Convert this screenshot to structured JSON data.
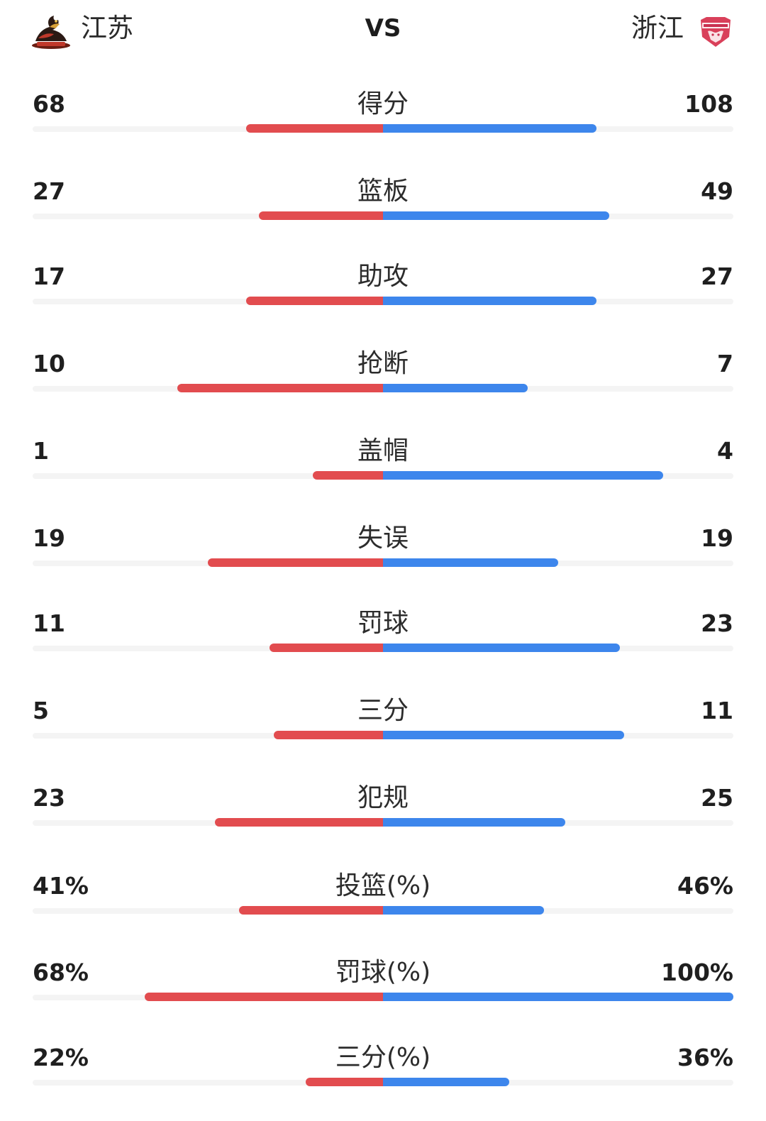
{
  "header": {
    "home_team": "江苏",
    "vs": "VS",
    "away_team": "浙江",
    "home_logo": "dragon-team-logo",
    "away_logo": "golden-bulls-team-logo"
  },
  "colors": {
    "home_bar": "#e24c4f",
    "away_bar": "#3d86ec",
    "track": "#f4f4f4"
  },
  "stats": [
    {
      "label": "得分",
      "left": "68",
      "right": "108",
      "left_fraction": 0.39,
      "right_fraction": 0.61
    },
    {
      "label": "篮板",
      "left": "27",
      "right": "49",
      "left_fraction": 0.355,
      "right_fraction": 0.645
    },
    {
      "label": "助攻",
      "left": "17",
      "right": "27",
      "left_fraction": 0.39,
      "right_fraction": 0.61
    },
    {
      "label": "抢断",
      "left": "10",
      "right": "7",
      "left_fraction": 0.587,
      "right_fraction": 0.413
    },
    {
      "label": "盖帽",
      "left": "1",
      "right": "4",
      "left_fraction": 0.2,
      "right_fraction": 0.8
    },
    {
      "label": "失误",
      "left": "19",
      "right": "19",
      "left_fraction": 0.5,
      "right_fraction": 0.5
    },
    {
      "label": "罚球",
      "left": "11",
      "right": "23",
      "left_fraction": 0.324,
      "right_fraction": 0.676
    },
    {
      "label": "三分",
      "left": "5",
      "right": "11",
      "left_fraction": 0.312,
      "right_fraction": 0.688
    },
    {
      "label": "犯规",
      "left": "23",
      "right": "25",
      "left_fraction": 0.479,
      "right_fraction": 0.521
    },
    {
      "label": "投篮(%)",
      "left": "41%",
      "right": "46%",
      "left_fraction": 0.41,
      "right_fraction": 0.46
    },
    {
      "label": "罚球(%)",
      "left": "68%",
      "right": "100%",
      "left_fraction": 0.68,
      "right_fraction": 1.0
    },
    {
      "label": "三分(%)",
      "left": "22%",
      "right": "36%",
      "left_fraction": 0.22,
      "right_fraction": 0.36
    }
  ]
}
